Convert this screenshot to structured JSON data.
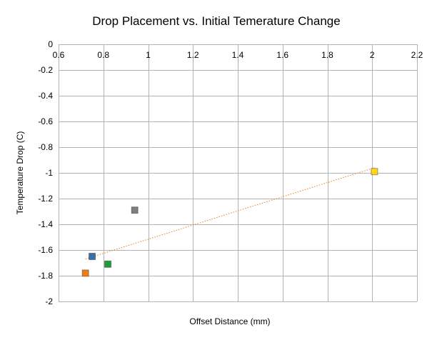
{
  "chart_data": {
    "type": "scatter",
    "title": "Drop Placement vs. Initial Temerature Change",
    "xlabel": "Offset Distance (mm)",
    "ylabel": "Temperature Drop (C)",
    "xlim": [
      0.6,
      2.2
    ],
    "ylim": [
      -2,
      0
    ],
    "x_ticks": [
      0.6,
      0.8,
      1,
      1.2,
      1.4,
      1.6,
      1.8,
      2,
      2.2
    ],
    "x_tick_labels": [
      "0.6",
      "0.8",
      "1",
      "1.2",
      "1.4",
      "1.6",
      "1.8",
      "2",
      "2.2"
    ],
    "y_ticks": [
      0,
      -0.2,
      -0.4,
      -0.6,
      -0.8,
      -1,
      -1.2,
      -1.4,
      -1.6,
      -1.8,
      -2
    ],
    "y_tick_labels": [
      "0",
      "-0.2",
      "-0.4",
      "-0.6",
      "-0.8",
      "-1",
      "-1.2",
      "-1.4",
      "-1.6",
      "-1.8",
      "-2"
    ],
    "grid": true,
    "points": [
      {
        "x": 0.75,
        "y": -1.65,
        "color": "#3c6ea8"
      },
      {
        "x": 0.72,
        "y": -1.78,
        "color": "#f07f12"
      },
      {
        "x": 0.94,
        "y": -1.29,
        "color": "#7f7f7f"
      },
      {
        "x": 0.82,
        "y": -1.71,
        "color": "#1e9b3a"
      },
      {
        "x": 2.01,
        "y": -0.99,
        "color": "#ffd320"
      }
    ],
    "trendline": {
      "x": [
        0.72,
        2.01
      ],
      "y": [
        -1.67,
        -0.96
      ],
      "color": "#f07f12",
      "style": "dotted"
    }
  }
}
